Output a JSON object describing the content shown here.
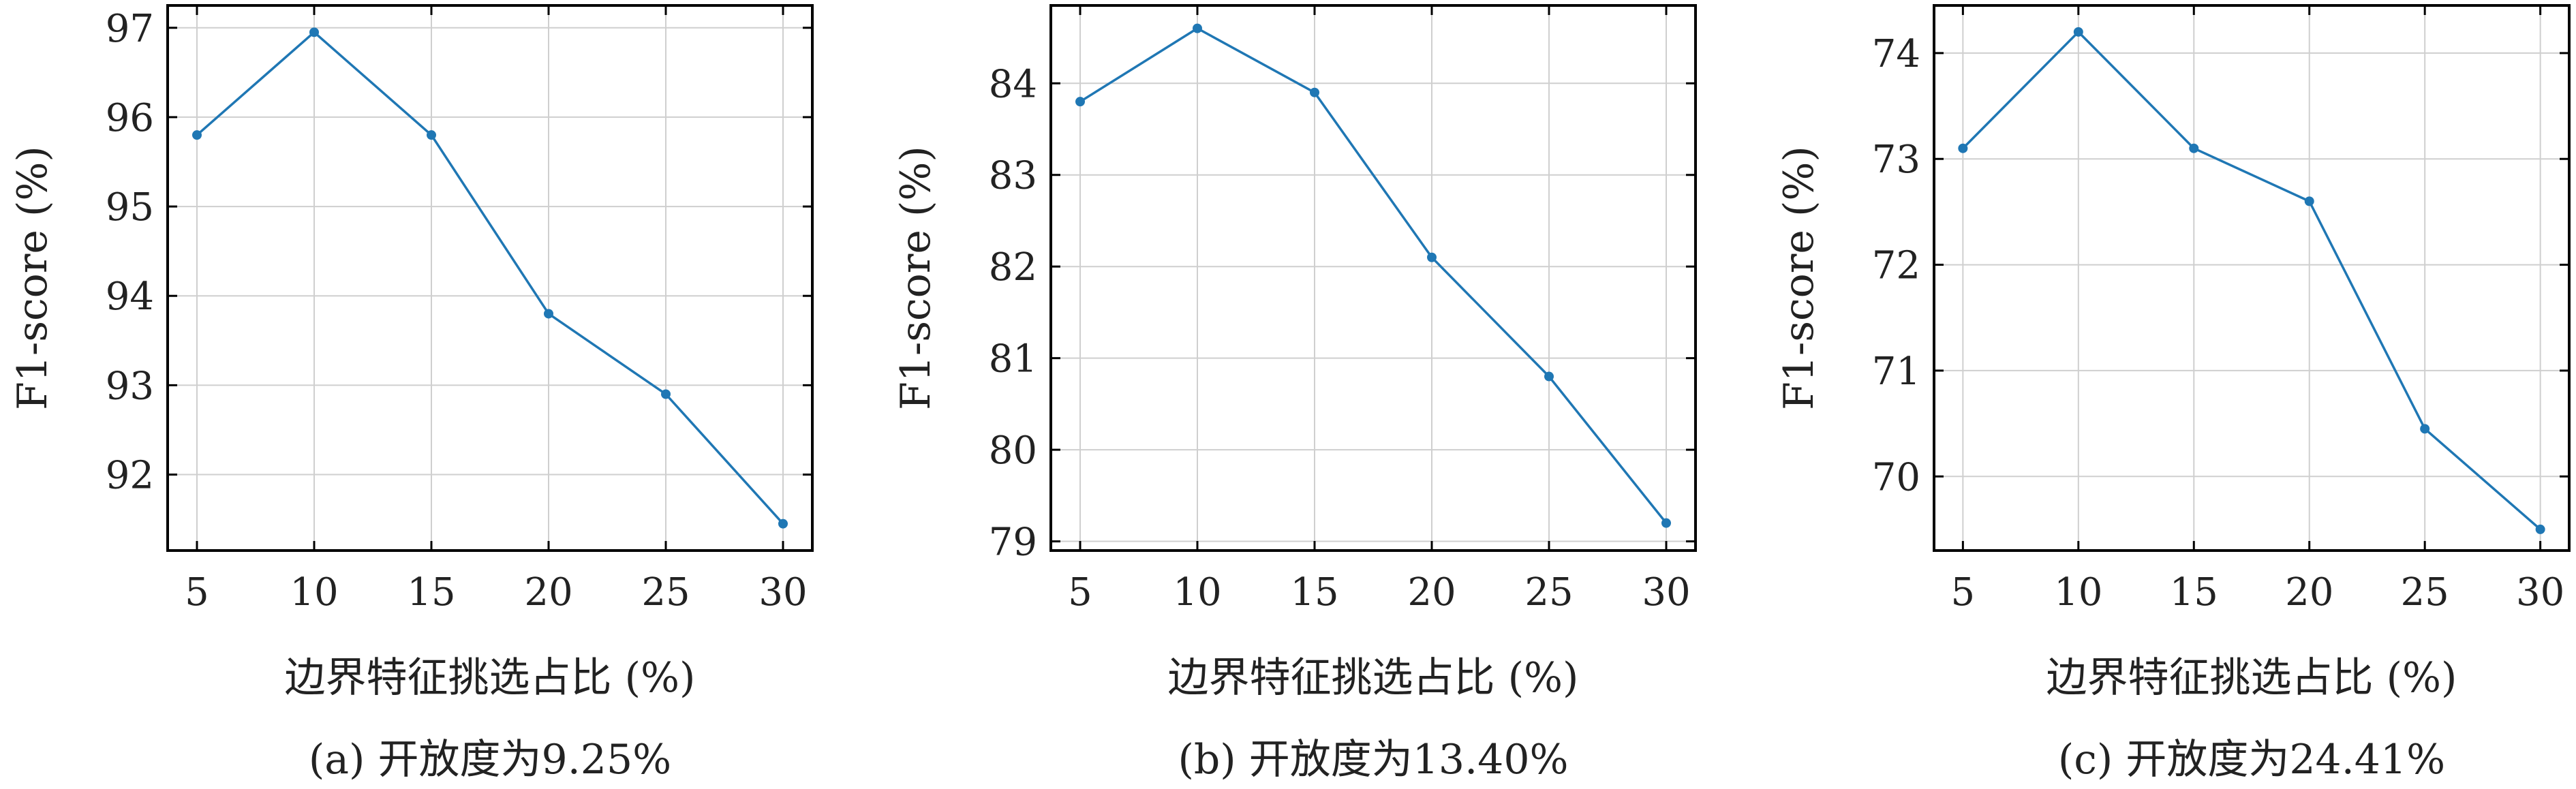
{
  "style": {
    "line_color": "#1f77b4",
    "grid_color": "#cfcfcf",
    "axis_color": "#000000"
  },
  "chart_data": [
    {
      "type": "line",
      "caption": "(a) 开放度为9.25%",
      "xlabel": "边界特征挑选占比 (%)",
      "ylabel": "F1-score (%)",
      "x": [
        5,
        10,
        15,
        20,
        25,
        30
      ],
      "y": [
        95.8,
        96.95,
        95.8,
        93.8,
        92.9,
        91.45
      ],
      "xticks": [
        5,
        10,
        15,
        20,
        25,
        30
      ],
      "yticks": [
        92,
        93,
        94,
        95,
        96,
        97
      ],
      "xlim": [
        3.75,
        31.25
      ],
      "ylim": [
        91.15,
        97.25
      ],
      "grid": true
    },
    {
      "type": "line",
      "caption": "(b) 开放度为13.40%",
      "xlabel": "边界特征挑选占比 (%)",
      "ylabel": "F1-score (%)",
      "x": [
        5,
        10,
        15,
        20,
        25,
        30
      ],
      "y": [
        83.8,
        84.6,
        83.9,
        82.1,
        80.8,
        79.2
      ],
      "xticks": [
        5,
        10,
        15,
        20,
        25,
        30
      ],
      "yticks": [
        79,
        80,
        81,
        82,
        83,
        84
      ],
      "xlim": [
        3.75,
        31.25
      ],
      "ylim": [
        78.9,
        84.85
      ],
      "grid": true
    },
    {
      "type": "line",
      "caption": "(c) 开放度为24.41%",
      "xlabel": "边界特征挑选占比 (%)",
      "ylabel": "F1-score (%)",
      "x": [
        5,
        10,
        15,
        20,
        25,
        30
      ],
      "y": [
        73.1,
        74.2,
        73.1,
        72.6,
        70.45,
        69.5
      ],
      "xticks": [
        5,
        10,
        15,
        20,
        25,
        30
      ],
      "yticks": [
        70,
        71,
        72,
        73,
        74
      ],
      "xlim": [
        3.75,
        31.25
      ],
      "ylim": [
        69.3,
        74.45
      ],
      "grid": true
    }
  ]
}
